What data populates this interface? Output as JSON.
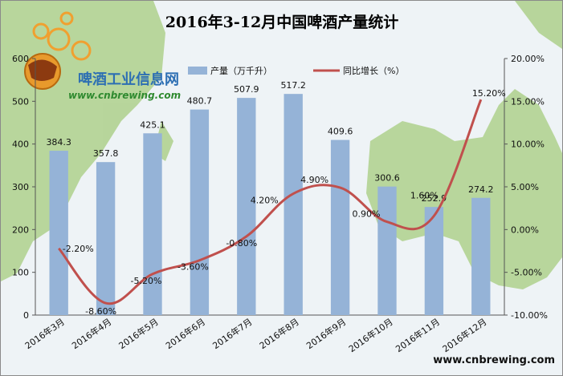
{
  "chart_data": {
    "type": "bar",
    "title": "2016年3-12月中国啤酒产量统计",
    "categories": [
      "2016年3月",
      "2016年4月",
      "2016年5月",
      "2016年6月",
      "2016年7月",
      "2016年8月",
      "2016年9月",
      "2016年10月",
      "2016年11月",
      "2016年12月"
    ],
    "series": [
      {
        "name": "产量（万千升）",
        "type": "bar",
        "axis": "left",
        "color": "#95b3d7",
        "values": [
          384.3,
          357.8,
          425.1,
          480.7,
          507.9,
          517.2,
          409.6,
          300.6,
          252.9,
          274.2
        ],
        "labels": [
          "384.3",
          "357.8",
          "425.1",
          "480.7",
          "507.9",
          "517.2",
          "409.6",
          "300.6",
          "252.9",
          "274.2"
        ]
      },
      {
        "name": "同比增长（%）",
        "type": "line",
        "axis": "right",
        "color": "#c0504d",
        "values": [
          -2.2,
          -8.6,
          -5.2,
          -3.6,
          -0.8,
          4.2,
          4.9,
          0.9,
          1.6,
          15.2
        ],
        "labels": [
          "-2.20%",
          "-8.60%",
          "-5.20%",
          "-3.60%",
          "-0.80%",
          "4.20%",
          "4.90%",
          "0.90%",
          "1.60%",
          "15.20%"
        ]
      }
    ],
    "y_left": {
      "min": 0,
      "max": 600,
      "ticks": [
        "0",
        "100",
        "200",
        "300",
        "400",
        "500",
        "600"
      ]
    },
    "y_right": {
      "min": -10,
      "max": 20,
      "ticks": [
        "-10.00%",
        "-5.00%",
        "0.00%",
        "5.00%",
        "10.00%",
        "15.00%",
        "20.00%"
      ]
    },
    "legend_position": "top",
    "grid": false
  },
  "watermark": {
    "site_name": "啤酒工业信息网",
    "site_url": "www.cnbrewing.com",
    "footer_url": "www.cnbrewing.com"
  },
  "colors": {
    "map": "#aed08c",
    "sea": "#eef3f6",
    "bar": "#95b3d7",
    "line": "#c0504d"
  }
}
